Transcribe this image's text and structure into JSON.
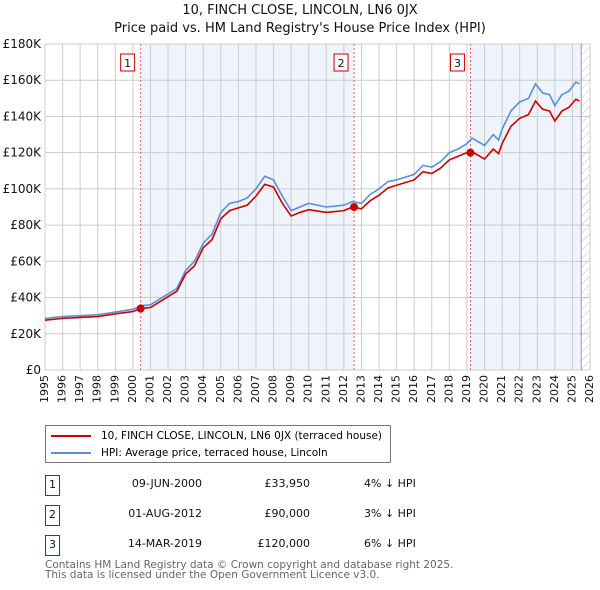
{
  "chart_data": {
    "type": "line",
    "title": "10, FINCH CLOSE, LINCOLN, LN6 0JX",
    "subtitle": "Price paid vs. HM Land Registry's House Price Index (HPI)",
    "xlim": [
      1995,
      2026
    ],
    "ylim": [
      0,
      180000
    ],
    "yticks": [
      {
        "v": 0,
        "l": "£0"
      },
      {
        "v": 20000,
        "l": "£20K"
      },
      {
        "v": 40000,
        "l": "£40K"
      },
      {
        "v": 60000,
        "l": "£60K"
      },
      {
        "v": 80000,
        "l": "£80K"
      },
      {
        "v": 100000,
        "l": "£100K"
      },
      {
        "v": 120000,
        "l": "£120K"
      },
      {
        "v": 140000,
        "l": "£140K"
      },
      {
        "v": 160000,
        "l": "£160K"
      },
      {
        "v": 180000,
        "l": "£180K"
      }
    ],
    "xticks": [
      "1995",
      "1996",
      "1997",
      "1998",
      "1999",
      "2000",
      "2001",
      "2002",
      "2003",
      "2004",
      "2005",
      "2006",
      "2007",
      "2008",
      "2009",
      "2010",
      "2011",
      "2012",
      "2013",
      "2014",
      "2015",
      "2016",
      "2017",
      "2018",
      "2019",
      "2020",
      "2021",
      "2022",
      "2023",
      "2024",
      "2025",
      "2026"
    ],
    "grid": true,
    "x": [
      1995,
      1996,
      1997,
      1998,
      1999,
      2000,
      2000.5,
      2001,
      2002,
      2002.5,
      2003,
      2003.5,
      2004,
      2004.5,
      2005,
      2005.5,
      2006,
      2006.5,
      2007,
      2007.5,
      2008,
      2008.5,
      2009,
      2009.5,
      2010,
      2011,
      2012,
      2012.5,
      2013,
      2013.5,
      2014,
      2014.5,
      2015,
      2016,
      2016.5,
      2017,
      2017.5,
      2018,
      2018.5,
      2019,
      2019.3,
      2020,
      2020.5,
      2020.8,
      2021,
      2021.5,
      2022,
      2022.5,
      2022.9,
      2023.3,
      2023.7,
      2024,
      2024.4,
      2024.8,
      2025.2,
      2025.4
    ],
    "series": [
      {
        "name": "10, FINCH CLOSE, LINCOLN, LN6 0JX (terraced house)",
        "color": "#cc0000",
        "values": [
          27500,
          28500,
          29000,
          29500,
          31000,
          32300,
          34000,
          34500,
          40500,
          43500,
          53000,
          57500,
          67500,
          72000,
          83500,
          88000,
          89500,
          91000,
          96000,
          102500,
          101000,
          92000,
          85000,
          87000,
          88500,
          87000,
          88000,
          90000,
          89000,
          93500,
          96500,
          100500,
          102000,
          105000,
          109500,
          108500,
          111500,
          116000,
          118000,
          120000,
          120500,
          116500,
          122000,
          119500,
          125000,
          134500,
          139000,
          141000,
          148500,
          144000,
          143000,
          137500,
          143000,
          145000,
          149500,
          148500
        ]
      },
      {
        "name": "HPI: Average price, terraced house, Lincoln",
        "color": "#5b8fd6",
        "values": [
          28500,
          29500,
          30000,
          30500,
          32000,
          33500,
          35500,
          36000,
          42000,
          45000,
          55000,
          60000,
          70000,
          75000,
          87000,
          92000,
          93000,
          95000,
          100000,
          107000,
          105000,
          96000,
          88000,
          90000,
          92000,
          90000,
          91000,
          93000,
          92000,
          97000,
          100000,
          104000,
          105000,
          108000,
          113000,
          112000,
          115000,
          120000,
          122000,
          125000,
          128000,
          124000,
          130000,
          127000,
          133000,
          143000,
          148000,
          150000,
          158000,
          153000,
          152000,
          146000,
          152000,
          154000,
          159000,
          158000
        ]
      }
    ],
    "sales": [
      {
        "n": "1",
        "x": 2000.44,
        "price": 33950,
        "date": "09-JUN-2000",
        "price_label": "£33,950",
        "hpi": "4% ↓ HPI"
      },
      {
        "n": "2",
        "x": 2012.58,
        "price": 90000,
        "date": "01-AUG-2012",
        "price_label": "£90,000",
        "hpi": "3% ↓ HPI"
      },
      {
        "n": "3",
        "x": 2019.2,
        "price": 120000,
        "date": "14-MAR-2019",
        "price_label": "£120,000",
        "hpi": "6% ↓ HPI"
      }
    ],
    "hatch_from": 2025.5
  },
  "footer": [
    "Contains HM Land Registry data © Crown copyright and database right 2025.",
    "This data is licensed under the Open Government Licence v3.0."
  ]
}
